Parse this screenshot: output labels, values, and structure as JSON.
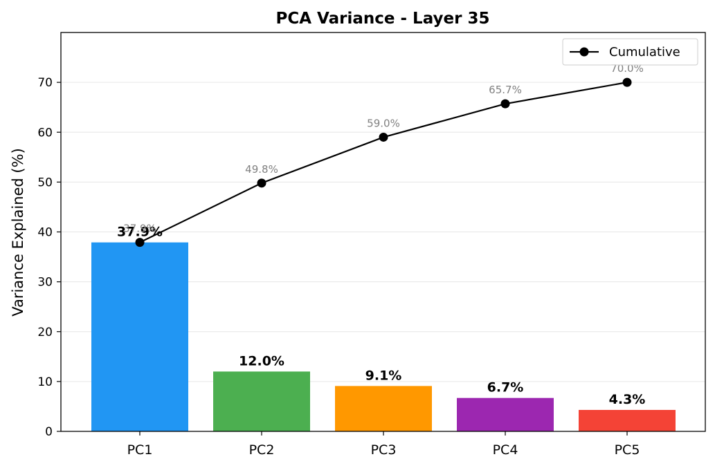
{
  "chart_data": {
    "type": "bar",
    "title": "PCA Variance - Layer 35",
    "xlabel": "",
    "ylabel": "Variance Explained (%)",
    "categories": [
      "PC1",
      "PC2",
      "PC3",
      "PC4",
      "PC5"
    ],
    "values": [
      37.9,
      12.0,
      9.1,
      6.7,
      4.3
    ],
    "value_labels": [
      "37.9%",
      "12.0%",
      "9.1%",
      "6.7%",
      "4.3%"
    ],
    "bar_colors": [
      "#2196F3",
      "#4CAF50",
      "#FF9800",
      "#9C27B0",
      "#F44336"
    ],
    "cumulative": {
      "name": "Cumulative",
      "type": "line",
      "color": "#000000",
      "values": [
        37.9,
        49.8,
        59.0,
        65.7,
        70.0
      ],
      "labels": [
        "37.9%",
        "49.8%",
        "59.0%",
        "65.7%",
        "70.0%"
      ],
      "label_color": "#808080"
    },
    "ylim": [
      0,
      80
    ],
    "yticks": [
      0,
      10,
      20,
      30,
      40,
      50,
      60,
      70
    ],
    "ytick_labels": [
      "0",
      "10",
      "20",
      "30",
      "40",
      "50",
      "60",
      "70"
    ],
    "grid": "y",
    "legend": "upper-right"
  }
}
